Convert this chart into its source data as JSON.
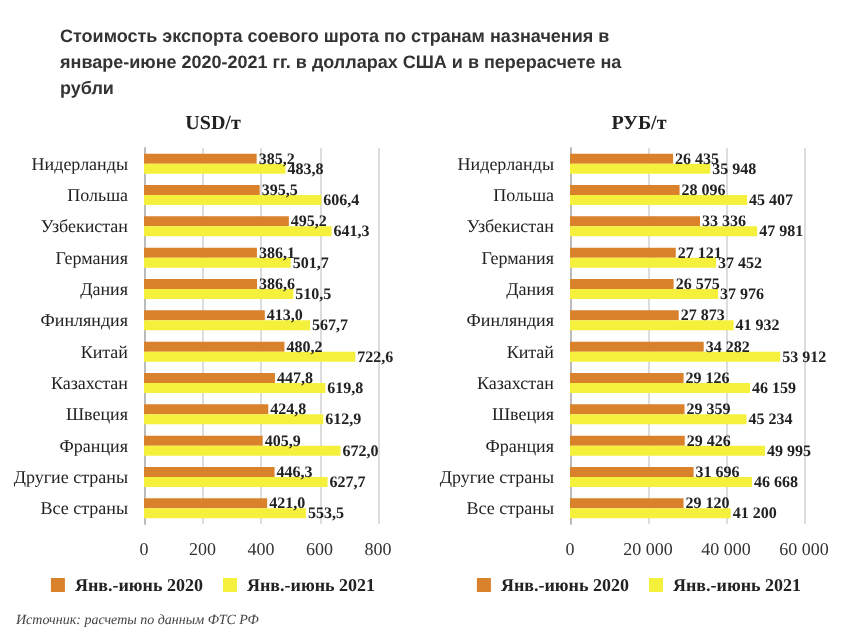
{
  "chart_data": [
    {
      "type": "bar",
      "orientation": "horizontal",
      "title": "Стоимость экспорта соевого шрота по странам назначения в январе-июне 2020-2021 гг. в долларах США и в перерасчете на рубли",
      "subtitle": "USD/т",
      "annotations": [
        "Источник: расчеты по данным ФТС РФ"
      ],
      "categories": [
        "Нидерланды",
        "Польша",
        "Узбекистан",
        "Германия",
        "Дания",
        "Финляндия",
        "Китай",
        "Казахстан",
        "Швеция",
        "Франция",
        "Другие страны",
        "Все страны"
      ],
      "series": [
        {
          "name": "Янв.-июнь 2020",
          "color": "#d9822b",
          "values": [
            385.2,
            395.5,
            495.2,
            386.1,
            386.6,
            413.0,
            480.2,
            447.8,
            424.8,
            405.9,
            446.3,
            421.0
          ],
          "value_labels": [
            "385,2",
            "395,5",
            "495,2",
            "386,1",
            "386,6",
            "413,0",
            "480,2",
            "447,8",
            "424,8",
            "405,9",
            "446,3",
            "421,0"
          ]
        },
        {
          "name": "Янв.-июнь 2021",
          "color": "#f5f03c",
          "values": [
            483.8,
            606.4,
            641.3,
            501.7,
            510.5,
            567.7,
            722.6,
            619.8,
            612.9,
            672.0,
            627.7,
            553.5
          ],
          "value_labels": [
            "483,8",
            "606,4",
            "641,3",
            "501,7",
            "510,5",
            "567,7",
            "722,6",
            "619,8",
            "612,9",
            "672,0",
            "627,7",
            "553,5"
          ]
        }
      ],
      "xlim": [
        0,
        800
      ],
      "xticks": [
        0,
        200,
        400,
        600,
        800
      ],
      "grid": "x",
      "legend": "bottom"
    },
    {
      "type": "bar",
      "orientation": "horizontal",
      "title": "РУБ/т",
      "categories": [
        "Нидерланды",
        "Польша",
        "Узбекистан",
        "Германия",
        "Дания",
        "Финляндия",
        "Китай",
        "Казахстан",
        "Швеция",
        "Франция",
        "Другие страны",
        "Все страны"
      ],
      "series": [
        {
          "name": "Янв.-июнь 2020",
          "color": "#d9822b",
          "values": [
            26435,
            28096,
            33336,
            27121,
            26575,
            27873,
            34282,
            29126,
            29359,
            29426,
            31696,
            29120
          ],
          "value_labels": [
            "26 435",
            "28 096",
            "33 336",
            "27 121",
            "26 575",
            "27 873",
            "34 282",
            "29 126",
            "29 359",
            "29 426",
            "31 696",
            "29 120"
          ]
        },
        {
          "name": "Янв.-июнь 2021",
          "color": "#f5f03c",
          "values": [
            35948,
            45407,
            47981,
            37452,
            37976,
            41932,
            53912,
            46159,
            45234,
            49995,
            46668,
            41200
          ],
          "value_labels": [
            "35 948",
            "45 407",
            "47 981",
            "37 452",
            "37 976",
            "41 932",
            "53 912",
            "46 159",
            "45 234",
            "49 995",
            "46 668",
            "41 200"
          ]
        }
      ],
      "xlim": [
        0,
        60000
      ],
      "xticks": [
        0,
        {
          "value": 20000,
          "label": "20 000"
        },
        {
          "value": 40000,
          "label": "40 000"
        },
        {
          "value": 60000,
          "label": "60 000"
        }
      ],
      "grid": "x",
      "legend": "bottom"
    }
  ]
}
